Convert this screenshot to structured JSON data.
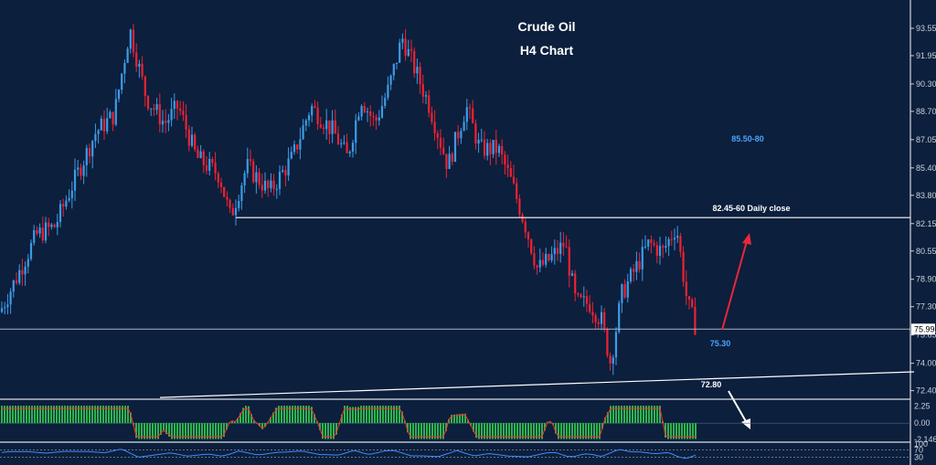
{
  "chart_data": {
    "type": "candlestick",
    "title": "Crude Oil",
    "subtitle": "H4 Chart",
    "ylim": [
      71.9,
      95.2
    ],
    "price_ticks": [
      "93.55",
      "91.95",
      "90.30",
      "88.70",
      "87.05",
      "85.40",
      "83.80",
      "82.15",
      "80.55",
      "78.90",
      "77.30",
      "75.65",
      "74.00",
      "72.40"
    ],
    "current_price": "75.99",
    "annotations": [
      {
        "text": "85.50-80",
        "color": "#4aa3ff"
      },
      {
        "text": "82.45-60 Daily close",
        "color": "#ffffff"
      },
      {
        "text": "75.30",
        "color": "#4aa3ff"
      },
      {
        "text": "72.80",
        "color": "#ffffff"
      }
    ],
    "horizontal_levels": [
      82.5,
      75.99
    ],
    "trendline": {
      "from": {
        "x": 175,
        "y": 72.0
      },
      "to": {
        "x": 1000,
        "y": 73.5
      }
    },
    "key_points": [
      {
        "x": 0,
        "y": 77.0
      },
      {
        "x": 18,
        "y": 79.0
      },
      {
        "x": 40,
        "y": 81.5
      },
      {
        "x": 60,
        "y": 82.0
      },
      {
        "x": 80,
        "y": 84.5
      },
      {
        "x": 105,
        "y": 87.5
      },
      {
        "x": 125,
        "y": 88.5
      },
      {
        "x": 142,
        "y": 93.5
      },
      {
        "x": 160,
        "y": 89.5
      },
      {
        "x": 180,
        "y": 88.0
      },
      {
        "x": 195,
        "y": 89.0
      },
      {
        "x": 215,
        "y": 86.0
      },
      {
        "x": 240,
        "y": 85.0
      },
      {
        "x": 252,
        "y": 82.5
      },
      {
        "x": 270,
        "y": 85.5
      },
      {
        "x": 295,
        "y": 84.0
      },
      {
        "x": 320,
        "y": 86.0
      },
      {
        "x": 340,
        "y": 89.0
      },
      {
        "x": 365,
        "y": 87.5
      },
      {
        "x": 380,
        "y": 86.0
      },
      {
        "x": 395,
        "y": 89.5
      },
      {
        "x": 410,
        "y": 88.0
      },
      {
        "x": 425,
        "y": 90.0
      },
      {
        "x": 440,
        "y": 93.0
      },
      {
        "x": 455,
        "y": 91.0
      },
      {
        "x": 470,
        "y": 89.0
      },
      {
        "x": 490,
        "y": 85.5
      },
      {
        "x": 510,
        "y": 89.0
      },
      {
        "x": 525,
        "y": 86.5
      },
      {
        "x": 545,
        "y": 86.5
      },
      {
        "x": 560,
        "y": 84.5
      },
      {
        "x": 575,
        "y": 82.0
      },
      {
        "x": 588,
        "y": 79.5
      },
      {
        "x": 600,
        "y": 80.0
      },
      {
        "x": 618,
        "y": 81.0
      },
      {
        "x": 630,
        "y": 77.5
      },
      {
        "x": 645,
        "y": 77.5
      },
      {
        "x": 658,
        "y": 76.5
      },
      {
        "x": 668,
        "y": 74.0
      },
      {
        "x": 680,
        "y": 78.0
      },
      {
        "x": 695,
        "y": 79.5
      },
      {
        "x": 710,
        "y": 81.0
      },
      {
        "x": 725,
        "y": 80.5
      },
      {
        "x": 740,
        "y": 82.0
      },
      {
        "x": 752,
        "y": 77.5
      },
      {
        "x": 762,
        "y": 76.0
      }
    ],
    "macd": {
      "ticks": [
        "2.25",
        "0.00",
        "-2.146"
      ],
      "ylim": [
        -2.4,
        2.8
      ]
    },
    "bottom_indicator": {
      "ticks": [
        "100",
        "70",
        "30"
      ]
    },
    "colors": {
      "background": "#0c1f3c",
      "up": "#3c9be6",
      "down": "#ee2233",
      "macd_hist": "#2eb34b",
      "macd_signal": "#ff2a2a",
      "bottom_line": "#3c8cff",
      "grid_line": "#d8dde6"
    }
  }
}
